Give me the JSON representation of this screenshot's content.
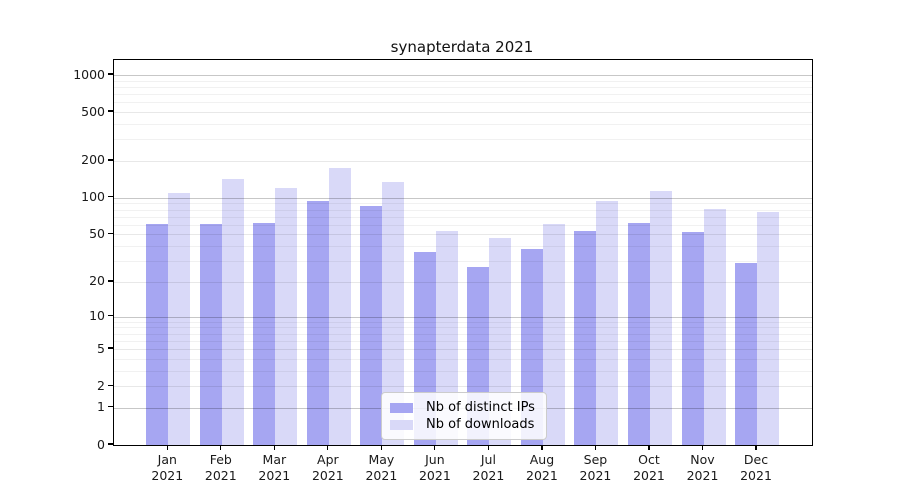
{
  "window": {
    "background": "#ffffff"
  },
  "chart_data": {
    "type": "bar",
    "title": "synapterdata 2021",
    "categories": [
      "Jan 2021",
      "Feb 2021",
      "Mar 2021",
      "Apr 2021",
      "May 2021",
      "Jun 2021",
      "Jul 2021",
      "Aug 2021",
      "Sep 2021",
      "Oct 2021",
      "Nov 2021",
      "Dec 2021"
    ],
    "series": [
      {
        "name": "Nb of distinct IPs",
        "color": "#a6a6f2",
        "values": [
          61,
          61,
          62,
          95,
          85,
          36,
          27,
          38,
          53,
          62,
          52,
          29
        ]
      },
      {
        "name": "Nb of downloads",
        "color": "#d9d9f8",
        "values": [
          110,
          143,
          120,
          174,
          134,
          53,
          47,
          61,
          95,
          114,
          81,
          77
        ]
      }
    ],
    "xlabel": "",
    "ylabel": "",
    "y_axis": {
      "scale": "log1p",
      "ticks": [
        1000,
        500,
        200,
        100,
        50,
        20,
        10,
        5,
        2,
        1,
        0
      ],
      "range": [
        0,
        1320
      ],
      "grid": "horizontal major+minor"
    },
    "legend": {
      "position": "inside-bottom-center"
    },
    "colors": {
      "axis": "#000000",
      "tick_label": "#1a1a1a",
      "major_grid": "#c6c6c6",
      "minor_grid": "#eeeeee"
    }
  }
}
